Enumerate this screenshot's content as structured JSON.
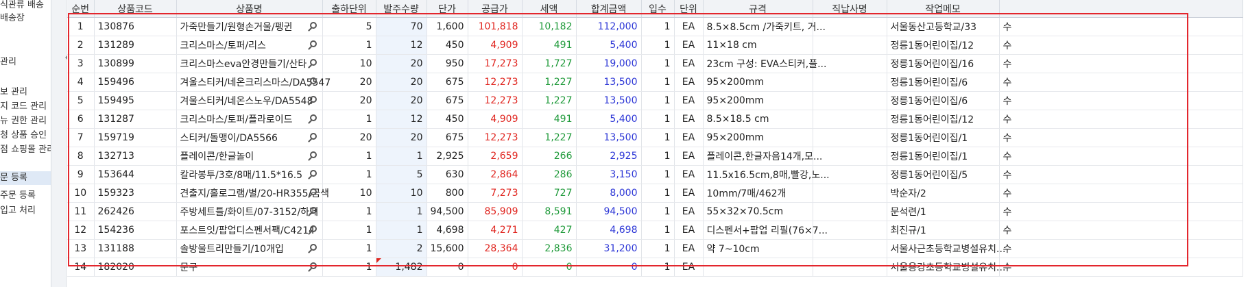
{
  "sidebar": {
    "items": [
      {
        "label": "식관류 배송",
        "selected": false
      },
      {
        "label": "배송장",
        "selected": false
      },
      {
        "label": "관리",
        "selected": false
      },
      {
        "label": "보 관리",
        "selected": false
      },
      {
        "label": "지 코드 관리",
        "selected": false
      },
      {
        "label": "뉴 권한 관리",
        "selected": false
      },
      {
        "label": "청 상품 승인",
        "selected": false
      },
      {
        "label": "점 쇼핑몰 관리",
        "selected": false
      },
      {
        "label": "문 등록",
        "selected": true
      },
      {
        "label": "주문 등록",
        "selected": false
      },
      {
        "label": "입고 처리",
        "selected": false
      }
    ]
  },
  "grid": {
    "columns": [
      "순번",
      "상품코드",
      "상품명",
      "출하단위",
      "발주수량",
      "단가",
      "공급가",
      "세액",
      "합계금액",
      "입수",
      "단위",
      "규격",
      "직납사명",
      "작업메모",
      ""
    ],
    "colors": {
      "supply": "#e0251f",
      "tax": "#1f9a3a",
      "total": "#2b35d6",
      "selection": "#e3262d"
    },
    "rows": [
      {
        "no": "1",
        "code": "130876",
        "name": "가죽만들기/원형손거울/펭귄",
        "ship_unit": "5",
        "qty": "70",
        "price": "1,600",
        "supply": "101,818",
        "tax": "10,182",
        "total": "112,000",
        "pack": "1",
        "unit": "EA",
        "spec": "8.5×8.5cm /가죽키트, 거...",
        "vendor": "",
        "memo": "서울동산고등학교/33",
        "tail": "수"
      },
      {
        "no": "2",
        "code": "131289",
        "name": "크리스마스/토퍼/리스",
        "ship_unit": "1",
        "qty": "12",
        "price": "450",
        "supply": "4,909",
        "tax": "491",
        "total": "5,400",
        "pack": "1",
        "unit": "EA",
        "spec": "11×18 cm",
        "vendor": "",
        "memo": "정릉1동어린이집/12",
        "tail": "수"
      },
      {
        "no": "3",
        "code": "130899",
        "name": "크리스마스eva안경만들기/산타",
        "ship_unit": "10",
        "qty": "20",
        "price": "950",
        "supply": "17,273",
        "tax": "1,727",
        "total": "19,000",
        "pack": "1",
        "unit": "EA",
        "spec": "23cm 구성: EVA스티커,플...",
        "vendor": "",
        "memo": "정릉1동어린이집/16",
        "tail": "수"
      },
      {
        "no": "4",
        "code": "159496",
        "name": "겨울스티커/네온크리스마스/DA5547",
        "ship_unit": "20",
        "qty": "20",
        "price": "675",
        "supply": "12,273",
        "tax": "1,227",
        "total": "13,500",
        "pack": "1",
        "unit": "EA",
        "spec": "95×200mm",
        "vendor": "",
        "memo": "정릉1동어린이집/6",
        "tail": "수"
      },
      {
        "no": "5",
        "code": "159495",
        "name": "겨울스티커/네온스노우/DA5548",
        "ship_unit": "20",
        "qty": "20",
        "price": "675",
        "supply": "12,273",
        "tax": "1,227",
        "total": "13,500",
        "pack": "1",
        "unit": "EA",
        "spec": "95×200mm",
        "vendor": "",
        "memo": "정릉1동어린이집/6",
        "tail": "수"
      },
      {
        "no": "6",
        "code": "131287",
        "name": "크리스마스/토퍼/플라로이드",
        "ship_unit": "1",
        "qty": "12",
        "price": "450",
        "supply": "4,909",
        "tax": "491",
        "total": "5,400",
        "pack": "1",
        "unit": "EA",
        "spec": "8.5×18.5 cm",
        "vendor": "",
        "memo": "정릉1동어린이집/12",
        "tail": "수"
      },
      {
        "no": "7",
        "code": "159719",
        "name": "스티커/돌맹이/DA5566",
        "ship_unit": "20",
        "qty": "20",
        "price": "675",
        "supply": "12,273",
        "tax": "1,227",
        "total": "13,500",
        "pack": "1",
        "unit": "EA",
        "spec": "95×200mm",
        "vendor": "",
        "memo": "정릉1동어린이집/1",
        "tail": "수"
      },
      {
        "no": "8",
        "code": "132713",
        "name": "플레이콘/한글놀이",
        "ship_unit": "1",
        "qty": "1",
        "price": "2,925",
        "supply": "2,659",
        "tax": "266",
        "total": "2,925",
        "pack": "1",
        "unit": "EA",
        "spec": "플레이콘,한글자음14개,모...",
        "vendor": "",
        "memo": "정릉1동어린이집/1",
        "tail": "수"
      },
      {
        "no": "9",
        "code": "153644",
        "name": "칼라봉투/3호/8매/11.5*16.5",
        "ship_unit": "1",
        "qty": "5",
        "price": "630",
        "supply": "2,864",
        "tax": "286",
        "total": "3,150",
        "pack": "1",
        "unit": "EA",
        "spec": "11.5x16.5cm,8매,빨강,노...",
        "vendor": "",
        "memo": "정릉1동어린이집/5",
        "tail": "수"
      },
      {
        "no": "10",
        "code": "159323",
        "name": "견출지/홀로그램/별/20-HR355/금색",
        "ship_unit": "10",
        "qty": "10",
        "price": "800",
        "supply": "7,273",
        "tax": "727",
        "total": "8,000",
        "pack": "1",
        "unit": "EA",
        "spec": "10mm/7매/462개",
        "vendor": "",
        "memo": "박순자/2",
        "tail": "수"
      },
      {
        "no": "11",
        "code": "262426",
        "name": "주방세트틀/화이트/07-3152/하페",
        "ship_unit": "1",
        "qty": "1",
        "price": "94,500",
        "supply": "85,909",
        "tax": "8,591",
        "total": "94,500",
        "pack": "1",
        "unit": "EA",
        "spec": "55×32×70.5cm",
        "vendor": "",
        "memo": "문석련/1",
        "tail": "수"
      },
      {
        "no": "12",
        "code": "154236",
        "name": "포스트잇/팝업디스펜서팩/C4214",
        "ship_unit": "1",
        "qty": "1",
        "price": "4,698",
        "supply": "4,271",
        "tax": "427",
        "total": "4,698",
        "pack": "1",
        "unit": "EA",
        "spec": "디스펜서+팝업 리필(76×7...",
        "vendor": "",
        "memo": "최진규/1",
        "tail": "수"
      },
      {
        "no": "13",
        "code": "131188",
        "name": "솔방울트리만들기/10개입",
        "ship_unit": "1",
        "qty": "2",
        "price": "15,600",
        "supply": "28,364",
        "tax": "2,836",
        "total": "31,200",
        "pack": "1",
        "unit": "EA",
        "spec": "약 7~10cm",
        "vendor": "",
        "memo": "서울사근초등학교병설유치...",
        "tail": "수"
      },
      {
        "no": "14",
        "code": "182020",
        "name": "문구",
        "ship_unit": "1",
        "qty": "1,482",
        "price": "0",
        "supply": "0",
        "tax": "0",
        "total": "0",
        "pack": "1",
        "unit": "EA",
        "spec": "",
        "vendor": "",
        "memo": "서울용강초등학교병설유치...",
        "tail": "수"
      }
    ]
  }
}
